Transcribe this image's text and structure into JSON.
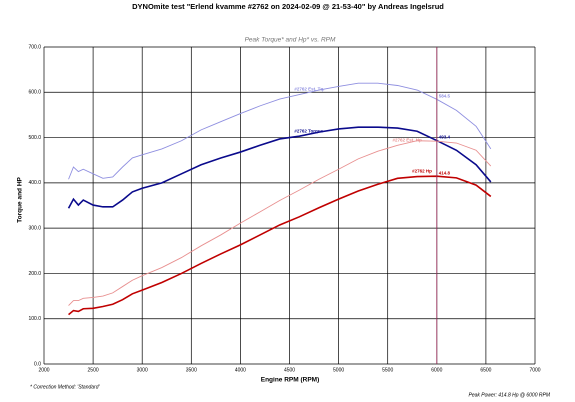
{
  "chart_data": {
    "type": "line",
    "title": "DYNOmite test \"Erlend kvamme #2762 on 2024-02-09 @ 21-53-40\" by Andreas Ingelsrud",
    "subtitle": "Peak Torque* and Hp* vs. RPM",
    "x_label": "Engine RPM (RPM)",
    "y_label": "Torque and HP",
    "footnote": "* Correction Method: 'Standard'",
    "footer": "Peak Power: 414.8 Hp @ 6000 RPM",
    "x": [
      2250,
      2300,
      2350,
      2400,
      2500,
      2600,
      2700,
      2800,
      2900,
      3000,
      3200,
      3400,
      3600,
      3800,
      4000,
      4200,
      4400,
      4600,
      4800,
      5000,
      5200,
      5400,
      5600,
      5800,
      6000,
      6200,
      6400,
      6550
    ],
    "series": [
      {
        "name": "#2762 Est. Tq.",
        "color": "#8f8fe0",
        "values": [
          408,
          435,
          425,
          430,
          420,
          410,
          413,
          435,
          455,
          462,
          475,
          493,
          517,
          535,
          553,
          570,
          585,
          595,
          605,
          613,
          620,
          620,
          615,
          605,
          584.5,
          560,
          525,
          475
        ]
      },
      {
        "name": "#2762 Torque",
        "color": "#0a0a8c",
        "values": [
          344,
          364,
          351,
          362,
          351,
          347,
          347,
          362,
          380,
          388,
          400,
          420,
          440,
          455,
          468,
          483,
          497,
          503,
          512,
          519,
          523,
          523,
          521,
          514,
          493.4,
          472,
          440,
          402
        ]
      },
      {
        "name": "#2762 Est. Hp",
        "color": "#e89090",
        "values": [
          129,
          140,
          140,
          145,
          147,
          150,
          157,
          171,
          185,
          195,
          213,
          235,
          261,
          285,
          311,
          336,
          361,
          384,
          408,
          430,
          453,
          470,
          483,
          493,
          492,
          488,
          472,
          437
        ]
      },
      {
        "name": "#2762 Hp",
        "color": "#c00000",
        "values": [
          109,
          118,
          116,
          122,
          123,
          127,
          132,
          142,
          155,
          163,
          180,
          200,
          222,
          243,
          263,
          285,
          307,
          325,
          345,
          364,
          382,
          397,
          410,
          414,
          414.8,
          411,
          395,
          370
        ]
      }
    ],
    "annotations": [
      {
        "label": "584.5",
        "x": 6000,
        "y": 584.5
      },
      {
        "label": "493.4",
        "x": 6000,
        "y": 493.4
      },
      {
        "label": "414.8",
        "x": 6000,
        "y": 414.8
      }
    ],
    "xlim": [
      2000,
      7000
    ],
    "xticks": [
      2000,
      2500,
      3000,
      3500,
      4000,
      4500,
      5000,
      5500,
      6000,
      6500,
      7000
    ],
    "ylim": [
      0,
      700
    ],
    "yticks": [
      {
        "value": 0,
        "label": "0.0"
      },
      {
        "value": 100,
        "label": "100.0"
      },
      {
        "value": 200,
        "label": "200.0"
      },
      {
        "value": 300,
        "label": "300.0"
      },
      {
        "value": 400,
        "label": "400.0"
      },
      {
        "value": 500,
        "label": "500.0"
      },
      {
        "value": 600,
        "label": "600.0"
      },
      {
        "value": 700,
        "label": "700.0"
      }
    ],
    "grid": true
  }
}
